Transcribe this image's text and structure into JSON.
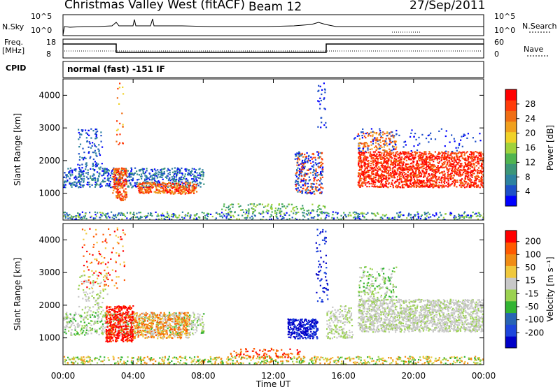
{
  "header": {
    "station": "Christmas Valley West (fitACF)",
    "beam": "Beam 12",
    "date": "27/Sep/2011"
  },
  "top_panels": {
    "nsky_label": "N.Sky",
    "nsky_ticks": [
      "10^5",
      "10^0"
    ],
    "nsky_right_ticks": [
      "10^5",
      "10^0"
    ],
    "nsearch_label": "N.Search",
    "freq_label": "Freq.",
    "freq_unit": "[MHz]",
    "freq_ticks": [
      "18",
      "8"
    ],
    "nave_ticks": [
      "60",
      "0"
    ],
    "nave_label": "Nave",
    "cpid_label": "CPID",
    "cpid_value": "normal (fast) -151 IF"
  },
  "chart_data": [
    {
      "type": "heatmap",
      "title": "",
      "xlabel": "",
      "ylabel": "Slant Range [km]",
      "x_ticks": [
        "00:00",
        "04:00",
        "08:00",
        "12:00",
        "16:00",
        "20:00",
        "00:00"
      ],
      "y_ticks": [
        "1000",
        "2000",
        "3000",
        "4000"
      ],
      "ylim": [
        180,
        4500
      ],
      "colorbar": {
        "label": "Power [dB]",
        "ticks": [
          "4",
          "8",
          "12",
          "16",
          "20",
          "24",
          "28"
        ],
        "colors": [
          "#0000ff",
          "#1e50c8",
          "#2d82a0",
          "#3c9678",
          "#50b450",
          "#a0d23c",
          "#f0d228",
          "#f0a01e",
          "#f06e14",
          "#ff3c0a",
          "#ff0000"
        ]
      }
    },
    {
      "type": "heatmap",
      "title": "",
      "xlabel": "Time UT",
      "ylabel": "Slant Range [km]",
      "x_ticks": [
        "00:00",
        "04:00",
        "08:00",
        "12:00",
        "16:00",
        "20:00",
        "00:00"
      ],
      "y_ticks": [
        "1000",
        "2000",
        "3000",
        "4000"
      ],
      "ylim": [
        180,
        4500
      ],
      "colorbar": {
        "label": "Velocity [m s⁻¹]",
        "ticks": [
          "200",
          "100",
          "50",
          "15",
          "-15",
          "-50",
          "-100",
          "-200"
        ],
        "colors": [
          "#0000c8",
          "#1e46dc",
          "#2864b4",
          "#32b432",
          "#9bd250",
          "#c8c8c8",
          "#f0c83c",
          "#f08c14",
          "#ff5a00",
          "#ff0000"
        ]
      }
    }
  ]
}
